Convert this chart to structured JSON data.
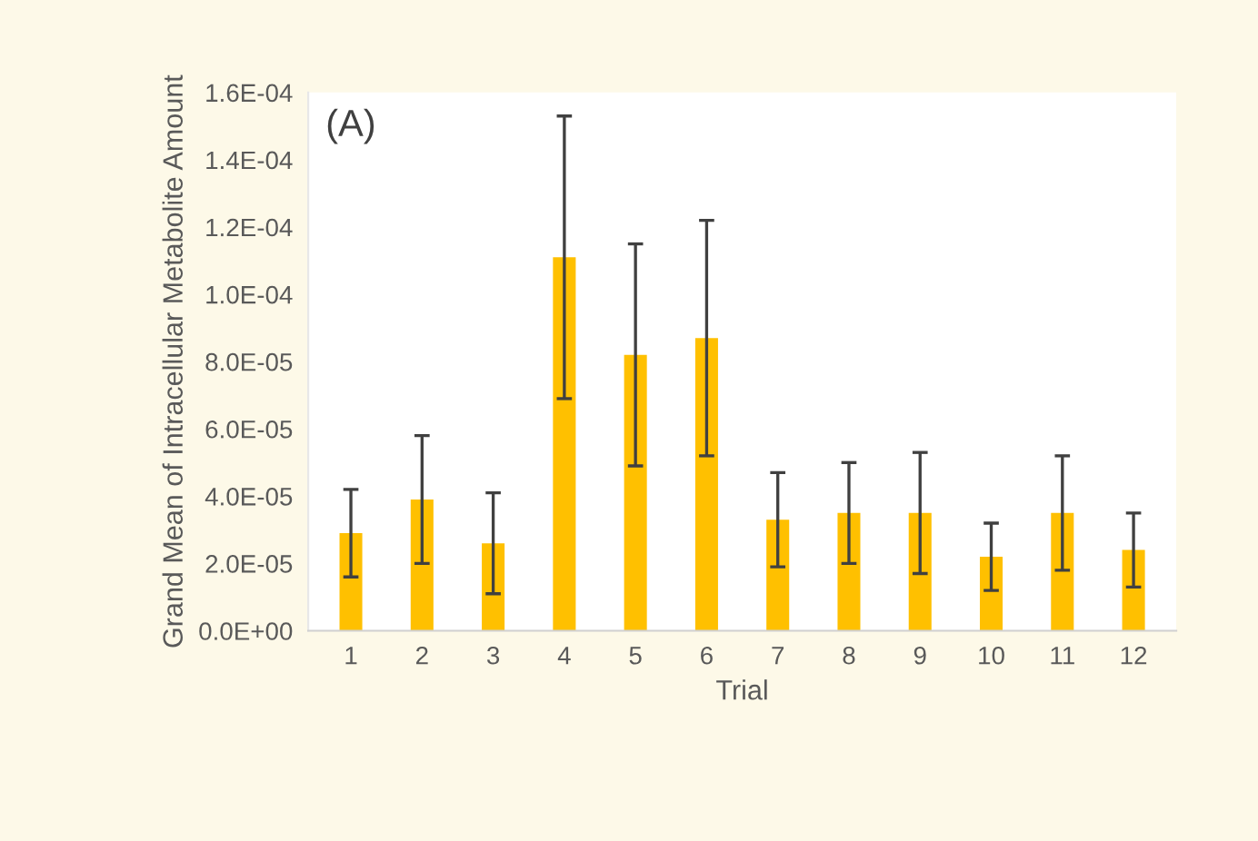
{
  "chart_data": {
    "type": "bar",
    "xlabel": "Trial",
    "ylabel": "Grand Mean of Intracellular Metabolite Amount",
    "annotations": [
      "(A)"
    ],
    "categories": [
      "1",
      "2",
      "3",
      "4",
      "5",
      "6",
      "7",
      "8",
      "9",
      "10",
      "11",
      "12"
    ],
    "values": [
      2.9e-05,
      3.9e-05,
      2.6e-05,
      0.000111,
      8.2e-05,
      8.7e-05,
      3.3e-05,
      3.5e-05,
      3.5e-05,
      2.2e-05,
      3.5e-05,
      2.4e-05
    ],
    "errors": [
      1.3e-05,
      1.9e-05,
      1.5e-05,
      4.2e-05,
      3.3e-05,
      3.5e-05,
      1.4e-05,
      1.5e-05,
      1.8e-05,
      1e-05,
      1.7e-05,
      1.1e-05
    ],
    "color": "#ffc000",
    "ylim": [
      0,
      0.00016
    ],
    "yticks": [
      {
        "value": 0,
        "label": "0.0E+00"
      },
      {
        "value": 2e-05,
        "label": "2.0E-05"
      },
      {
        "value": 4e-05,
        "label": "4.0E-05"
      },
      {
        "value": 6e-05,
        "label": "6.0E-05"
      },
      {
        "value": 8e-05,
        "label": "8.0E-05"
      },
      {
        "value": 0.0001,
        "label": "1.0E-04"
      },
      {
        "value": 0.00012,
        "label": "1.2E-04"
      },
      {
        "value": 0.00014,
        "label": "1.4E-04"
      },
      {
        "value": 0.00016,
        "label": "1.6E-04"
      }
    ],
    "grid": false,
    "legend": false
  }
}
